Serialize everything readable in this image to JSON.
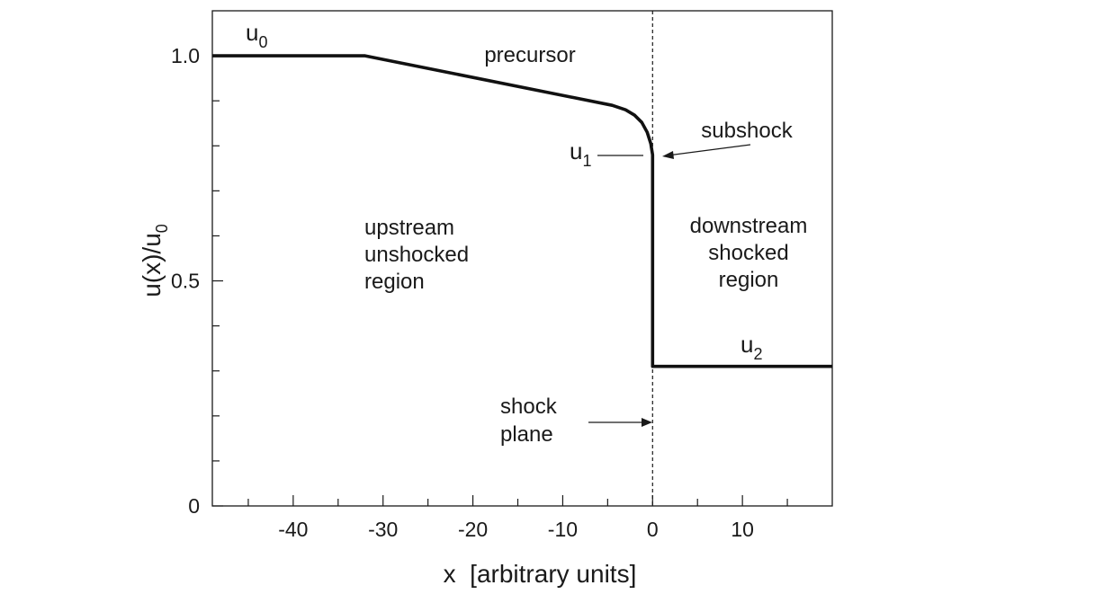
{
  "chart_data": {
    "type": "line",
    "title": "",
    "xlabel": "x  [arbitrary units]",
    "ylabel": {
      "base": "u(x)/u",
      "sub": "0"
    },
    "xlim": [
      -49,
      20
    ],
    "ylim": [
      0,
      1.1
    ],
    "x_ticks": [
      {
        "value": -40,
        "label": "-40"
      },
      {
        "value": -30,
        "label": "-30"
      },
      {
        "value": -20,
        "label": "-20"
      },
      {
        "value": -10,
        "label": "-10"
      },
      {
        "value": 0,
        "label": "0"
      },
      {
        "value": 10,
        "label": "10"
      }
    ],
    "x_minor_ticks": [
      -45,
      -35,
      -25,
      -15,
      -5,
      5,
      15
    ],
    "y_ticks": [
      {
        "value": 0,
        "label": "0"
      },
      {
        "value": 0.5,
        "label": "0.5"
      },
      {
        "value": 1.0,
        "label": "1.0"
      }
    ],
    "y_minor_ticks": [
      0.1,
      0.2,
      0.3,
      0.4,
      0.6,
      0.7,
      0.8,
      0.9
    ],
    "grid": false,
    "series": [
      {
        "points": [
          [
            -49,
            1.0
          ],
          [
            -32,
            1.0
          ],
          [
            -4.5,
            0.89
          ],
          [
            -3,
            0.88
          ],
          [
            -2,
            0.868
          ],
          [
            -1.2,
            0.852
          ],
          [
            -0.6,
            0.83
          ],
          [
            -0.2,
            0.805
          ],
          [
            0,
            0.78
          ],
          [
            0,
            0.31
          ],
          [
            20,
            0.31
          ]
        ]
      }
    ],
    "shock_plane_x": 0,
    "annotations": {
      "precursor": "precursor",
      "subshock": "subshock",
      "upstream": [
        "upstream",
        "unshocked",
        "region"
      ],
      "downstream": [
        "downstream",
        "shocked",
        "region"
      ],
      "shock_plane": [
        "shock",
        "plane"
      ],
      "u0": {
        "base": "u",
        "sub": "0"
      },
      "u1": {
        "base": "u",
        "sub": "1"
      },
      "u2": {
        "base": "u",
        "sub": "2"
      }
    }
  }
}
